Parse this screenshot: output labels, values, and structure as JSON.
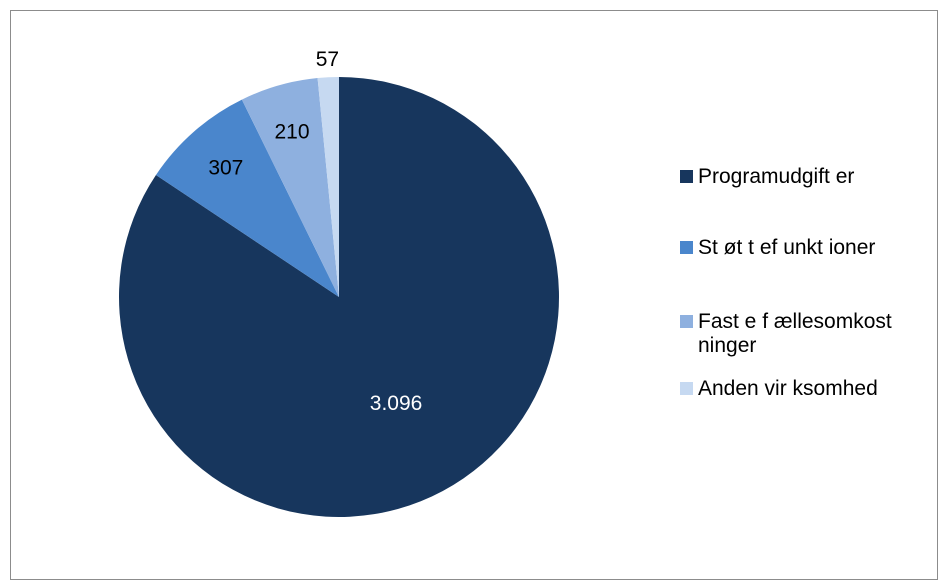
{
  "chart_data": {
    "type": "pie",
    "title": "",
    "categories": [
      "Programudgift er",
      "St øt t ef unkt ioner",
      "Fast e f ællesomkost ninger",
      "Anden vir ksomhed"
    ],
    "values": [
      3096,
      307,
      210,
      57
    ],
    "data_labels": [
      "3.096",
      "307",
      "210",
      "57"
    ],
    "colors": [
      "#17365d",
      "#4a86cc",
      "#8eb0df",
      "#c6d9f1"
    ],
    "label_colors": [
      "#ffffff",
      "#000000",
      "#000000",
      "#000000"
    ],
    "legend_position": "right",
    "start_angle_deg": 0,
    "direction": "clockwise"
  }
}
